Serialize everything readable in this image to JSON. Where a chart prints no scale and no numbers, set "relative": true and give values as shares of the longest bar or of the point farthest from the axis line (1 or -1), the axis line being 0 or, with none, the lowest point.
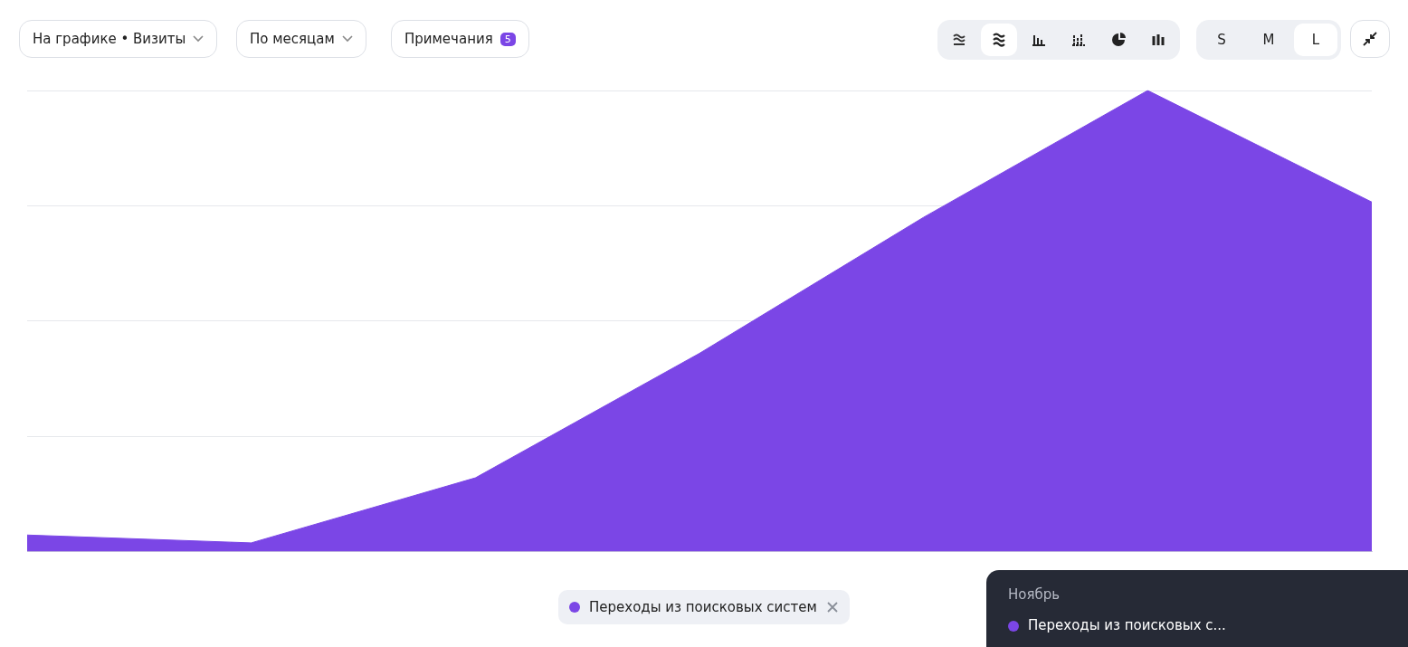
{
  "chart_data": {
    "type": "area",
    "relative": true,
    "categories": [
      null,
      null,
      null,
      null,
      null,
      null,
      null
    ],
    "series": [
      {
        "name": "Переходы из поисковых систем",
        "color": "#7b46e6",
        "values": [
          0.036,
          0.019,
          0.16,
          0.43,
          0.725,
          1,
          0.758
        ]
      }
    ],
    "grid": "y",
    "legend": "bottom",
    "marker": "none",
    "annotations": [
      "На графике • Визиты",
      "По месяцам",
      "Примечания",
      "5",
      "S",
      "M",
      "L",
      "Ноябрь",
      "Переходы из поисковых с..."
    ]
  }
}
